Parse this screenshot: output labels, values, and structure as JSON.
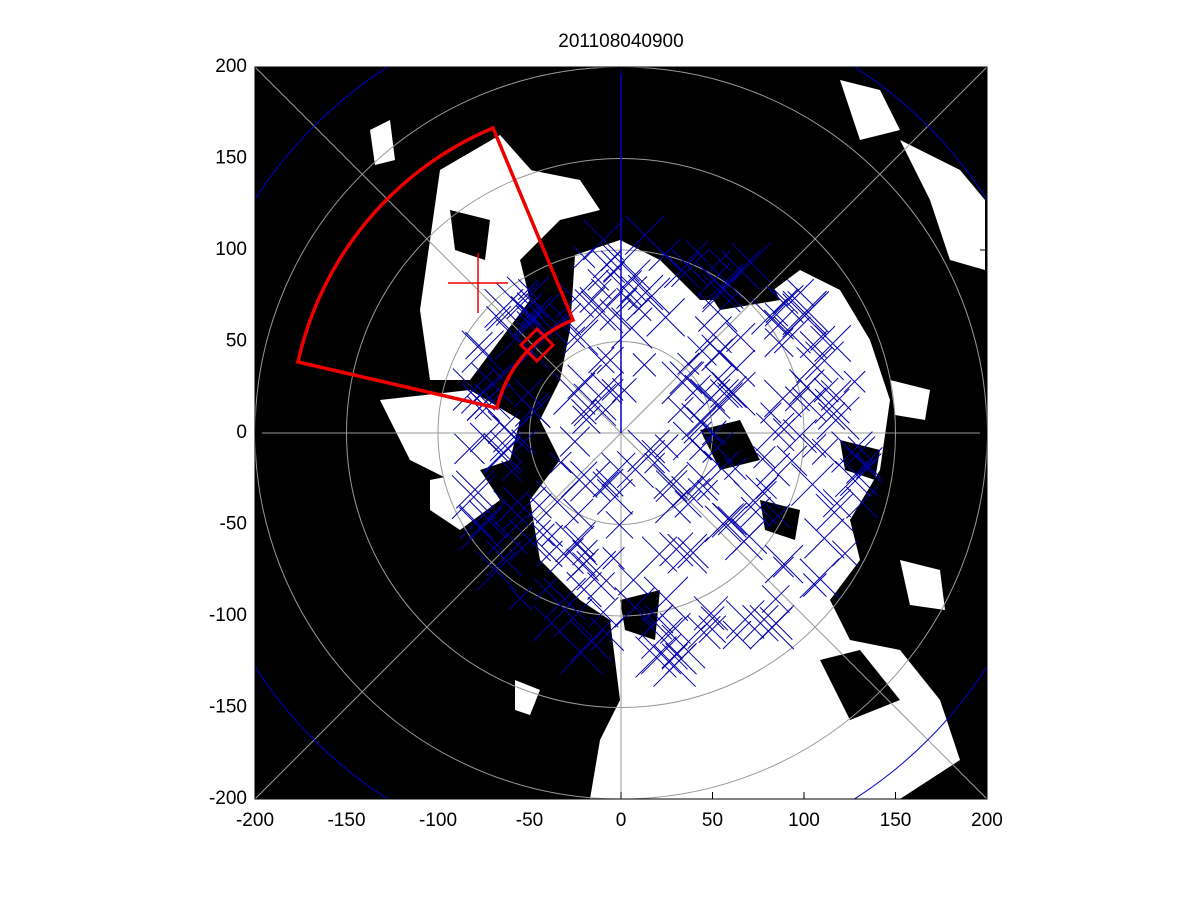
{
  "chart_data": {
    "type": "image",
    "title": "201108040900",
    "xlim": [
      -200,
      200
    ],
    "ylim": [
      -200,
      200
    ],
    "xticks": [
      -200,
      -150,
      -100,
      -50,
      0,
      50,
      100,
      150,
      200
    ],
    "yticks": [
      -200,
      -150,
      -100,
      -50,
      0,
      50,
      100,
      150,
      200
    ]
  }
}
